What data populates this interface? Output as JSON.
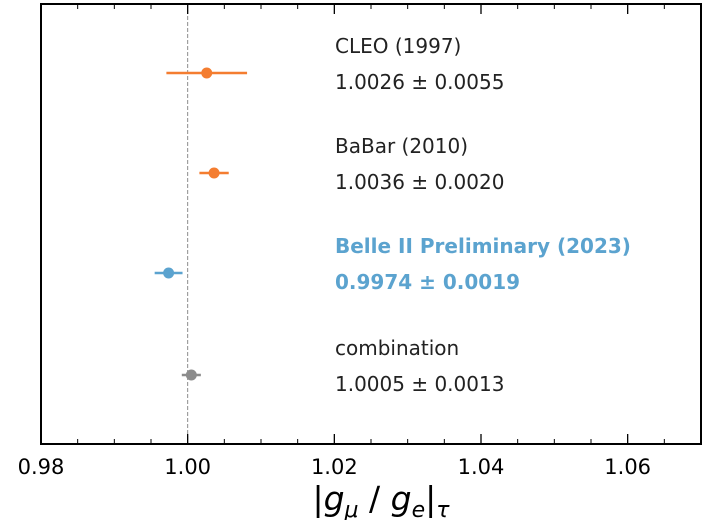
{
  "chart_data": {
    "type": "scatter",
    "xlim": [
      0.98,
      1.07
    ],
    "x_ticks": [
      0.98,
      1.0,
      1.02,
      1.04,
      1.06
    ],
    "x_tick_labels": [
      "0.98",
      "1.00",
      "1.02",
      "1.04",
      "1.06"
    ],
    "xlabel": "|gμ / ge|τ",
    "reference_line_x": 1.0,
    "grid": false,
    "series": [
      {
        "label": "CLEO (1997)",
        "value_text": "1.0026 ± 0.0055",
        "x": 1.0026,
        "err": 0.0055,
        "color": "#f47d30",
        "bold": false
      },
      {
        "label": "BaBar (2010)",
        "value_text": "1.0036 ± 0.0020",
        "x": 1.0036,
        "err": 0.002,
        "color": "#f47d30",
        "bold": false
      },
      {
        "label": "Belle II Preliminary (2023)",
        "value_text": "0.9974 ± 0.0019",
        "x": 0.9974,
        "err": 0.0019,
        "color": "#5ba3cf",
        "bold": true
      },
      {
        "label": "combination",
        "value_text": "1.0005 ± 0.0013",
        "x": 1.0005,
        "err": 0.0013,
        "color": "#8c8c8c",
        "bold": false
      }
    ]
  }
}
